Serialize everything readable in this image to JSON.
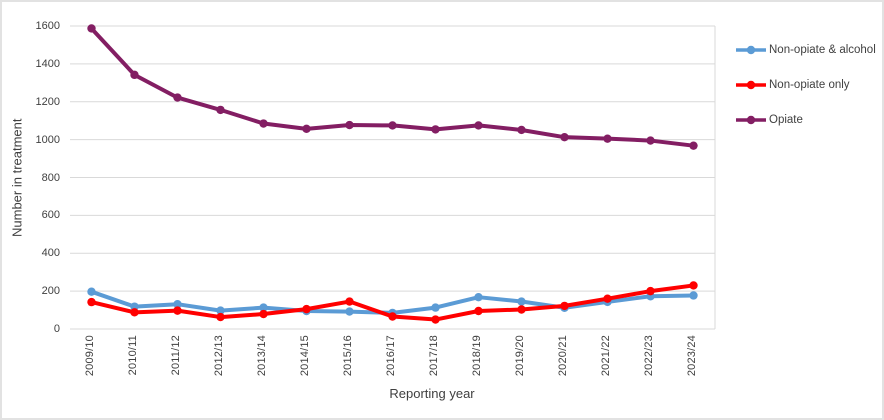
{
  "chart_data": {
    "type": "line",
    "title": "",
    "xlabel": "Reporting year",
    "ylabel": "Number in treatment",
    "categories": [
      "2009/10",
      "2010/11",
      "2011/12",
      "2012/13",
      "2013/14",
      "2014/15",
      "2015/16",
      "2016/17",
      "2017/18",
      "2018/19",
      "2019/20",
      "2020/21",
      "2021/22",
      "2022/23",
      "2023/24"
    ],
    "series": [
      {
        "name": "Non-opiate & alcohol",
        "color": "#5B9BD5",
        "values": [
          197,
          118,
          131,
          97,
          113,
          95,
          92,
          85,
          113,
          168,
          145,
          112,
          143,
          173,
          177
        ]
      },
      {
        "name": "Non-opiate only",
        "color": "#FF0000",
        "values": [
          142,
          88,
          97,
          63,
          79,
          105,
          145,
          66,
          50,
          95,
          103,
          122,
          160,
          200,
          230
        ]
      },
      {
        "name": "Opiate",
        "color": "#831E63",
        "values": [
          1587,
          1342,
          1222,
          1157,
          1085,
          1057,
          1077,
          1075,
          1054,
          1075,
          1051,
          1013,
          1005,
          995,
          968
        ]
      }
    ],
    "ylim": [
      0,
      1600
    ],
    "ytick_step": 200,
    "yticks": [
      "0",
      "200",
      "400",
      "600",
      "800",
      "1000",
      "1200",
      "1400",
      "1600"
    ],
    "grid": true,
    "gridline_color": "#D9D9D9",
    "text_color": "#404040",
    "legend_position": "right"
  }
}
